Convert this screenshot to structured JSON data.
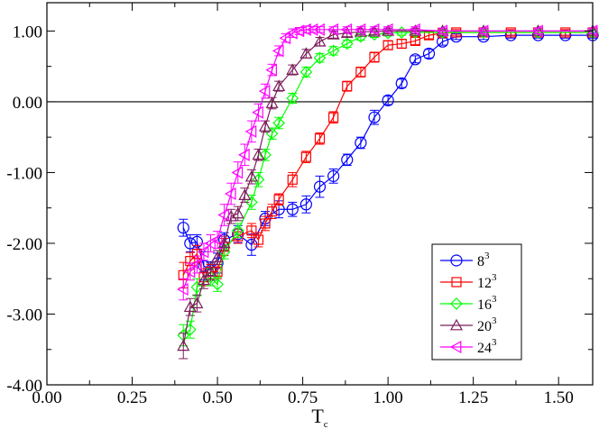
{
  "chart_data": {
    "type": "line",
    "title": "",
    "xlabel": "T",
    "xlabel_sub": "c",
    "ylabel": "",
    "xlim": [
      0.0,
      1.6
    ],
    "ylim": [
      -4.0,
      1.4
    ],
    "x_ticks": [
      0.0,
      0.25,
      0.5,
      0.75,
      1.0,
      1.25,
      1.5
    ],
    "x_tick_labels": [
      "0.00",
      "0.25",
      "0.50",
      "0.75",
      "1.00",
      "1.25",
      "1.50"
    ],
    "y_ticks": [
      -4.0,
      -3.0,
      -2.0,
      -1.0,
      0.0,
      1.0
    ],
    "y_tick_labels": [
      "-4.00",
      "-3.00",
      "-2.00",
      "-1.00",
      "0.00",
      "1.00"
    ],
    "reference_line_y": 0.0,
    "legend_position": "lower-right",
    "series": [
      {
        "name": "8",
        "exponent": "3",
        "marker": "circle",
        "color": "#0000ff",
        "x": [
          0.4,
          0.42,
          0.44,
          0.46,
          0.48,
          0.5,
          0.52,
          0.56,
          0.6,
          0.64,
          0.68,
          0.72,
          0.76,
          0.8,
          0.84,
          0.88,
          0.92,
          0.96,
          1.0,
          1.04,
          1.08,
          1.12,
          1.16,
          1.2,
          1.28,
          1.36,
          1.44,
          1.52,
          1.6
        ],
        "y": [
          -1.78,
          -2.0,
          -1.98,
          -2.32,
          -2.38,
          -2.28,
          -1.95,
          -1.87,
          -2.02,
          -1.65,
          -1.52,
          -1.52,
          -1.45,
          -1.2,
          -1.05,
          -0.82,
          -0.58,
          -0.22,
          0.02,
          0.26,
          0.6,
          0.68,
          0.85,
          0.92,
          0.92,
          0.94,
          0.94,
          0.94,
          0.94
        ],
        "err": [
          0.12,
          0.12,
          0.1,
          0.2,
          0.12,
          0.14,
          0.1,
          0.12,
          0.15,
          0.1,
          0.12,
          0.1,
          0.12,
          0.15,
          0.1,
          0.08,
          0.08,
          0.1,
          0.06,
          0.06,
          0.05,
          0.06,
          0.05,
          0.04,
          0.04,
          0.04,
          0.04,
          0.04,
          0.04
        ]
      },
      {
        "name": "12",
        "exponent": "3",
        "marker": "square",
        "color": "#ff0000",
        "x": [
          0.4,
          0.42,
          0.44,
          0.46,
          0.48,
          0.5,
          0.52,
          0.56,
          0.6,
          0.62,
          0.64,
          0.66,
          0.68,
          0.72,
          0.76,
          0.8,
          0.84,
          0.88,
          0.92,
          0.96,
          1.0,
          1.04,
          1.08,
          1.12,
          1.16,
          1.2,
          1.28,
          1.36,
          1.44,
          1.52,
          1.6
        ],
        "y": [
          -2.45,
          -2.25,
          -2.15,
          -2.48,
          -2.4,
          -2.4,
          -2.05,
          -1.9,
          -1.82,
          -1.95,
          -1.72,
          -1.55,
          -1.38,
          -1.1,
          -0.78,
          -0.52,
          -0.22,
          0.22,
          0.42,
          0.63,
          0.8,
          0.82,
          0.86,
          0.94,
          0.97,
          0.98,
          0.98,
          0.98,
          0.98,
          0.98,
          0.98
        ],
        "err": [
          0.18,
          0.12,
          0.12,
          0.12,
          0.1,
          0.1,
          0.12,
          0.1,
          0.1,
          0.1,
          0.1,
          0.1,
          0.08,
          0.1,
          0.08,
          0.08,
          0.08,
          0.07,
          0.07,
          0.07,
          0.06,
          0.06,
          0.05,
          0.05,
          0.04,
          0.04,
          0.04,
          0.04,
          0.04,
          0.04,
          0.04
        ]
      },
      {
        "name": "16",
        "exponent": "3",
        "marker": "diamond",
        "color": "#00ff00",
        "x": [
          0.4,
          0.42,
          0.44,
          0.48,
          0.5,
          0.52,
          0.56,
          0.6,
          0.62,
          0.64,
          0.66,
          0.68,
          0.72,
          0.76,
          0.8,
          0.84,
          0.88,
          0.92,
          0.96,
          1.0,
          1.04,
          1.08,
          1.16,
          1.28,
          1.44,
          1.6
        ],
        "y": [
          -3.3,
          -3.22,
          -2.62,
          -2.48,
          -2.58,
          -2.12,
          -1.82,
          -1.42,
          -1.1,
          -0.75,
          -0.45,
          -0.3,
          0.05,
          0.42,
          0.62,
          0.72,
          0.82,
          0.92,
          0.95,
          0.97,
          0.98,
          0.98,
          0.98,
          0.98,
          0.98,
          0.98
        ],
        "err": [
          0.15,
          0.12,
          0.12,
          0.12,
          0.1,
          0.1,
          0.1,
          0.1,
          0.1,
          0.08,
          0.08,
          0.08,
          0.07,
          0.07,
          0.06,
          0.06,
          0.05,
          0.05,
          0.04,
          0.04,
          0.04,
          0.04,
          0.04,
          0.04,
          0.04,
          0.04
        ]
      },
      {
        "name": "20",
        "exponent": "3",
        "marker": "triangle-up",
        "color": "#7b1e5a",
        "x": [
          0.4,
          0.42,
          0.44,
          0.46,
          0.48,
          0.5,
          0.52,
          0.54,
          0.56,
          0.58,
          0.6,
          0.62,
          0.64,
          0.66,
          0.68,
          0.72,
          0.76,
          0.8,
          0.84,
          0.88,
          0.92,
          0.96,
          1.0,
          1.08,
          1.16,
          1.28,
          1.44,
          1.6
        ],
        "y": [
          -3.45,
          -2.9,
          -2.85,
          -2.52,
          -2.4,
          -2.2,
          -2.0,
          -1.62,
          -1.58,
          -1.32,
          -1.06,
          -0.75,
          -0.35,
          -0.02,
          0.22,
          0.45,
          0.68,
          0.85,
          0.95,
          0.97,
          0.99,
          0.99,
          1.0,
          1.0,
          1.0,
          1.0,
          1.0,
          1.0
        ],
        "err": [
          0.18,
          0.12,
          0.12,
          0.12,
          0.12,
          0.1,
          0.1,
          0.1,
          0.1,
          0.1,
          0.1,
          0.08,
          0.08,
          0.08,
          0.07,
          0.07,
          0.06,
          0.06,
          0.05,
          0.05,
          0.04,
          0.04,
          0.04,
          0.04,
          0.04,
          0.04,
          0.04,
          0.04
        ]
      },
      {
        "name": "24",
        "exponent": "3",
        "marker": "triangle-left",
        "color": "#ff00ff",
        "x": [
          0.4,
          0.42,
          0.44,
          0.46,
          0.48,
          0.5,
          0.52,
          0.54,
          0.56,
          0.58,
          0.6,
          0.62,
          0.64,
          0.66,
          0.68,
          0.7,
          0.72,
          0.74,
          0.76,
          0.78,
          0.8,
          0.84,
          0.88,
          0.92,
          0.96,
          1.0,
          1.08,
          1.16,
          1.28,
          1.44,
          1.6
        ],
        "y": [
          -2.65,
          -2.4,
          -2.3,
          -2.12,
          -2.0,
          -1.95,
          -1.6,
          -1.3,
          -1.0,
          -0.75,
          -0.42,
          -0.15,
          0.15,
          0.45,
          0.72,
          0.9,
          0.97,
          1.0,
          1.02,
          1.02,
          1.02,
          1.02,
          1.02,
          1.02,
          1.02,
          1.02,
          1.02,
          1.0,
          1.0,
          1.0,
          1.0
        ],
        "err": [
          0.15,
          0.12,
          0.12,
          0.12,
          0.12,
          0.12,
          0.15,
          0.15,
          0.15,
          0.15,
          0.15,
          0.12,
          0.1,
          0.08,
          0.07,
          0.06,
          0.06,
          0.05,
          0.05,
          0.04,
          0.04,
          0.04,
          0.04,
          0.04,
          0.04,
          0.04,
          0.04,
          0.04,
          0.04,
          0.04,
          0.04
        ]
      }
    ]
  }
}
